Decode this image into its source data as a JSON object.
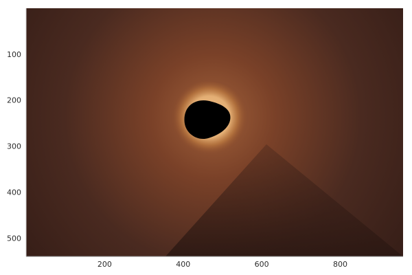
{
  "chart_data": {
    "type": "heatmap",
    "title": "",
    "xlabel": "",
    "ylabel": "",
    "xlim": [
      0,
      960
    ],
    "ylim": [
      0,
      540
    ],
    "y_inverted": true,
    "x_ticks": [
      200,
      400,
      600,
      800
    ],
    "y_ticks": [
      100,
      200,
      300,
      400,
      500
    ],
    "x_tick_labels": [
      "200",
      "400",
      "600",
      "800"
    ],
    "y_tick_labels": [
      "100",
      "200",
      "300",
      "400",
      "500"
    ],
    "grid": false,
    "legend": "none",
    "colormap": [
      "#000000",
      "#2e1a14",
      "#4a2a20",
      "#7a4128",
      "#a0603a",
      "#e3ae74"
    ],
    "features": {
      "dark_blob": {
        "cx": 460,
        "cy": 243,
        "rx": 60,
        "ry": 42
      },
      "glow_ring_color": "#e3ae74",
      "shadow_wedge": [
        [
          355,
          540
        ],
        [
          612,
          296
        ],
        [
          960,
          540
        ]
      ]
    }
  }
}
